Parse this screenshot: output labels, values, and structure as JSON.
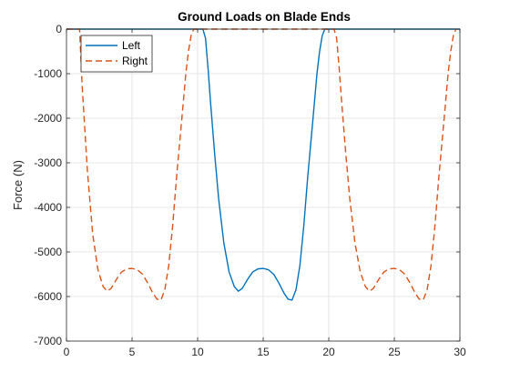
{
  "chart_data": {
    "type": "line",
    "title": "Ground Loads on Blade Ends",
    "xlabel": "",
    "ylabel": "Force (N)",
    "xlim": [
      0,
      30
    ],
    "ylim": [
      -7000,
      0
    ],
    "xticks": [
      0,
      5,
      10,
      15,
      20,
      25,
      30
    ],
    "yticks": [
      -7000,
      -6000,
      -5000,
      -4000,
      -3000,
      -2000,
      -1000,
      0
    ],
    "grid": true,
    "legend": "top-left",
    "series": [
      {
        "name": "Left",
        "color": "#0072BD",
        "style": "solid",
        "x": [
          0,
          9.9,
          10.4,
          10.6,
          10.8,
          11.0,
          11.3,
          11.6,
          12.0,
          12.4,
          12.8,
          13.1,
          13.4,
          13.8,
          14.2,
          14.6,
          15.0,
          15.4,
          15.8,
          16.2,
          16.6,
          16.9,
          17.2,
          17.5,
          17.8,
          18.1,
          18.4,
          18.8,
          19.1,
          19.3,
          19.5,
          19.7,
          20.1,
          30
        ],
        "y": [
          0,
          0,
          0,
          -200,
          -900,
          -1700,
          -2800,
          -3800,
          -4800,
          -5450,
          -5780,
          -5880,
          -5820,
          -5620,
          -5450,
          -5380,
          -5370,
          -5400,
          -5500,
          -5700,
          -5930,
          -6060,
          -6080,
          -5850,
          -5300,
          -4400,
          -3300,
          -2000,
          -1000,
          -500,
          -150,
          0,
          0,
          0
        ]
      },
      {
        "name": "Right",
        "color": "#D95319",
        "style": "dashed",
        "x": [
          0,
          1.0,
          1.2,
          1.6,
          2.0,
          2.4,
          2.8,
          3.1,
          3.4,
          3.8,
          4.2,
          4.6,
          5.0,
          5.4,
          5.8,
          6.2,
          6.6,
          6.9,
          7.2,
          7.5,
          7.8,
          8.1,
          8.4,
          8.8,
          9.1,
          9.3,
          9.5,
          9.7,
          10.1,
          20.0,
          20.4,
          20.6,
          20.8,
          21.0,
          21.3,
          21.6,
          22.0,
          22.4,
          22.8,
          23.1,
          23.4,
          23.8,
          24.2,
          24.6,
          25.0,
          25.4,
          25.8,
          26.2,
          26.6,
          26.9,
          27.2,
          27.5,
          27.8,
          28.1,
          28.4,
          28.8,
          29.1,
          29.3,
          29.5,
          29.7
        ],
        "y": [
          0,
          0,
          -1300,
          -3200,
          -4600,
          -5400,
          -5780,
          -5880,
          -5820,
          -5620,
          -5450,
          -5380,
          -5370,
          -5400,
          -5500,
          -5700,
          -5930,
          -6060,
          -6080,
          -5850,
          -5300,
          -4400,
          -3300,
          -2000,
          -1000,
          -500,
          -150,
          0,
          0,
          0,
          0,
          -200,
          -900,
          -1700,
          -2800,
          -3800,
          -4800,
          -5450,
          -5780,
          -5880,
          -5820,
          -5620,
          -5450,
          -5380,
          -5370,
          -5400,
          -5500,
          -5700,
          -5930,
          -6060,
          -6080,
          -5850,
          -5300,
          -4400,
          -3300,
          -2000,
          -1000,
          -500,
          -150,
          0
        ]
      }
    ]
  }
}
